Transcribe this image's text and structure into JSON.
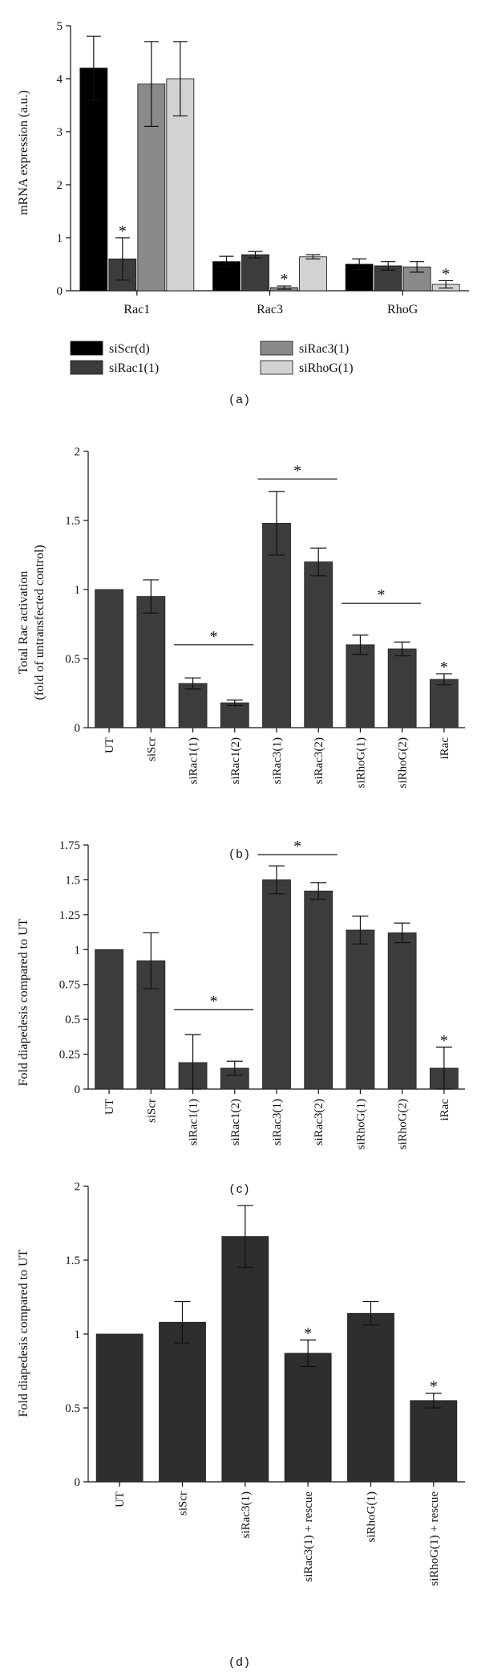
{
  "chart_data": [
    {
      "type": "bar",
      "panel": "(a)",
      "ylabel": "mRNA expression (a.u.)",
      "xlabel": "",
      "ylim": [
        0,
        5
      ],
      "yticks": [
        "0",
        "1",
        "2",
        "3",
        "4",
        "5"
      ],
      "categories": [
        "Rac1",
        "Rac3",
        "RhoG"
      ],
      "series": [
        {
          "name": "siScr(d)",
          "color": "#000000",
          "values": [
            4.2,
            0.55,
            0.5
          ],
          "errors": [
            0.6,
            0.1,
            0.1
          ],
          "stars": [
            false,
            false,
            false
          ]
        },
        {
          "name": "siRac1(1)",
          "color": "#3c3c3c",
          "values": [
            0.6,
            0.68,
            0.47
          ],
          "errors": [
            0.4,
            0.06,
            0.08
          ],
          "stars": [
            true,
            false,
            false
          ]
        },
        {
          "name": "siRac3(1)",
          "color": "#8a8a8a",
          "values": [
            3.9,
            0.06,
            0.45
          ],
          "errors": [
            0.8,
            0.03,
            0.1
          ],
          "stars": [
            false,
            true,
            false
          ]
        },
        {
          "name": "siRhoG(1)",
          "color": "#d2d2d2",
          "values": [
            4.0,
            0.64,
            0.12
          ],
          "errors": [
            0.7,
            0.04,
            0.07
          ],
          "stars": [
            false,
            false,
            true
          ]
        }
      ],
      "star_label": "*"
    },
    {
      "type": "bar",
      "panel": "(b)",
      "ylabel_lines": [
        "Total Rac activation",
        "(fold of untransfected control)"
      ],
      "ylim": [
        0,
        2
      ],
      "yticks": [
        "0",
        "0.5",
        "1",
        "1.5",
        "2"
      ],
      "categories": [
        "UT",
        "siScr",
        "siRac1(1)",
        "siRac1(2)",
        "siRac3(1)",
        "siRac3(2)",
        "siRhoG(1)",
        "siRhoG(2)",
        "iRac"
      ],
      "values": [
        1.0,
        0.95,
        0.32,
        0.18,
        1.48,
        1.2,
        0.6,
        0.57,
        0.35
      ],
      "errors": [
        0,
        0.12,
        0.04,
        0.02,
        0.23,
        0.1,
        0.07,
        0.05,
        0.04
      ],
      "stars": [
        false,
        false,
        false,
        false,
        false,
        false,
        false,
        false,
        true
      ],
      "brackets": [
        {
          "from": 2,
          "to": 3,
          "y": 0.6
        },
        {
          "from": 4,
          "to": 5,
          "y": 1.8
        },
        {
          "from": 6,
          "to": 7,
          "y": 0.9
        }
      ],
      "star_label": "*"
    },
    {
      "type": "bar",
      "panel": "(c)",
      "ylabel": "Fold diapedesis compared to UT",
      "ylim": [
        0,
        1.75
      ],
      "yticks": [
        "0",
        "0.25",
        "0.5",
        "0.75",
        "1",
        "1.25",
        "1.5",
        "1.75"
      ],
      "categories": [
        "UT",
        "siScr",
        "siRac1(1)",
        "siRac1(2)",
        "siRac3(1)",
        "siRac3(2)",
        "siRhoG(1)",
        "siRhoG(2)",
        "iRac"
      ],
      "values": [
        1.0,
        0.92,
        0.19,
        0.15,
        1.5,
        1.42,
        1.14,
        1.12,
        0.15
      ],
      "errors": [
        0,
        0.2,
        0.2,
        0.05,
        0.1,
        0.06,
        0.1,
        0.07,
        0.15
      ],
      "stars": [
        false,
        false,
        false,
        false,
        false,
        false,
        false,
        false,
        true
      ],
      "brackets": [
        {
          "from": 2,
          "to": 3,
          "y": 0.57
        },
        {
          "from": 4,
          "to": 5,
          "y": 1.68
        }
      ],
      "star_label": "*"
    },
    {
      "type": "bar",
      "panel": "(d)",
      "ylabel": "Fold diapedesis compared to UT",
      "ylim": [
        0,
        2
      ],
      "yticks": [
        "0",
        "0.5",
        "1",
        "1.5",
        "2"
      ],
      "categories": [
        "UT",
        "siScr",
        "siRac3(1)",
        "siRac3(1) + rescue",
        "siRhoG(1)",
        "siRhoG(1) + rescue"
      ],
      "values": [
        1.0,
        1.08,
        1.66,
        0.87,
        1.14,
        0.55
      ],
      "errors": [
        0,
        0.14,
        0.21,
        0.09,
        0.08,
        0.05
      ],
      "stars": [
        false,
        false,
        false,
        true,
        false,
        true
      ],
      "star_label": "*"
    }
  ],
  "colors": {
    "bar_dark": "#3c3c3c",
    "axis": "#111111"
  }
}
